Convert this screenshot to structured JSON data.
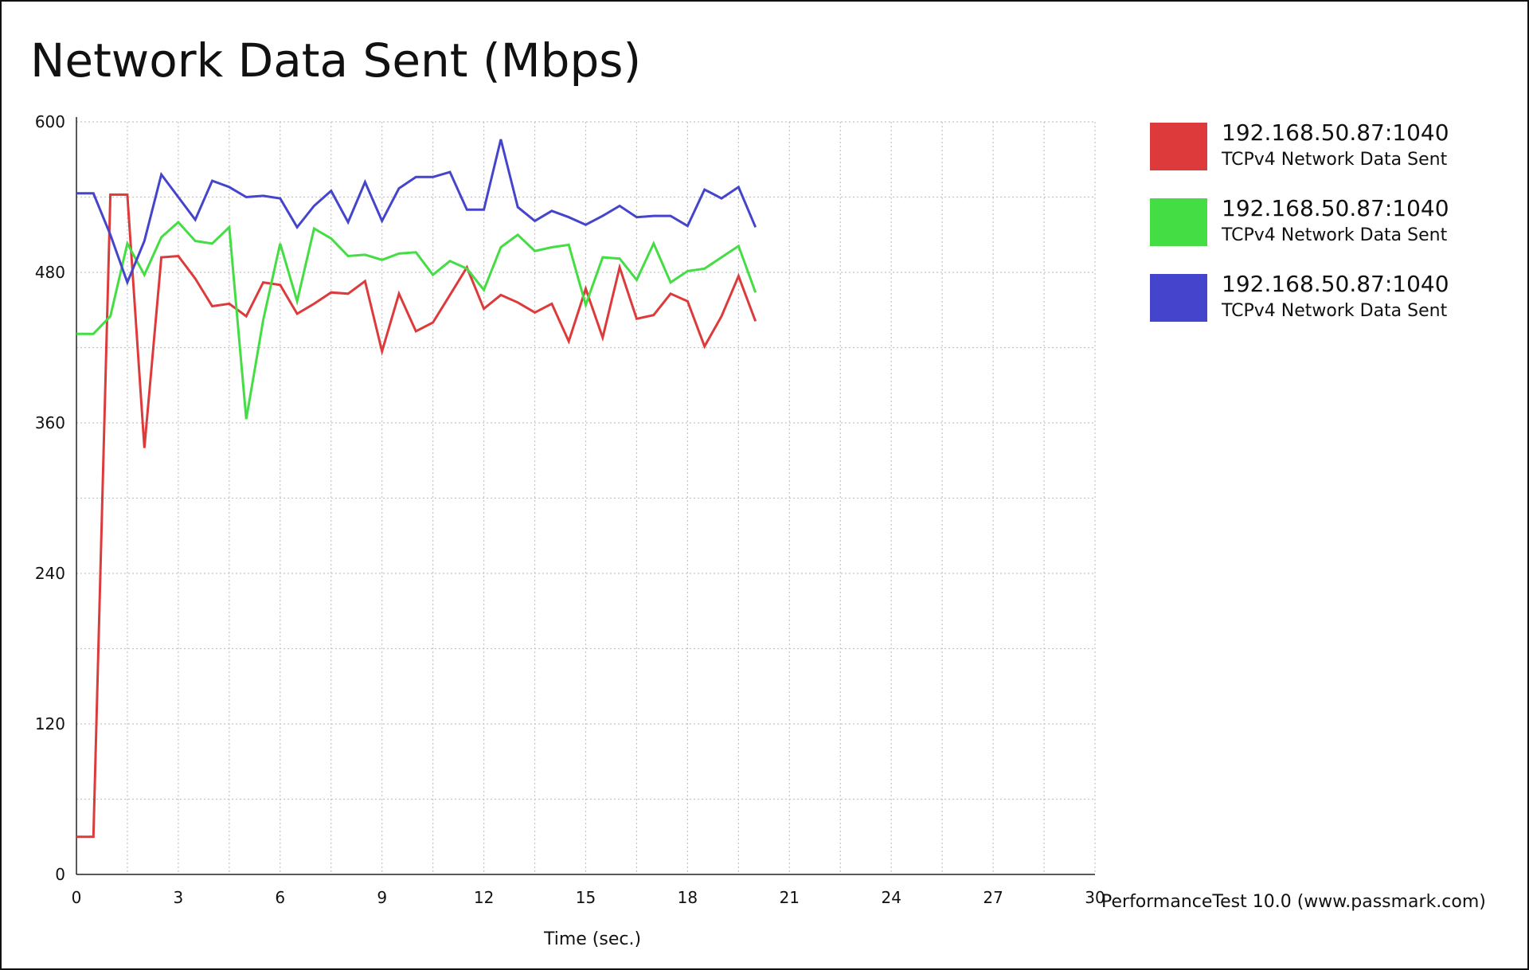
{
  "chart_data": {
    "type": "line",
    "title": "Network Data Sent (Mbps)",
    "xlabel": "Time (sec.)",
    "ylabel": "",
    "xlim": [
      0,
      30
    ],
    "ylim": [
      0,
      600
    ],
    "xticks": [
      0,
      3,
      6,
      9,
      12,
      15,
      18,
      21,
      24,
      27,
      30
    ],
    "yticks": [
      0,
      120,
      240,
      360,
      480,
      600
    ],
    "grid": true,
    "legend_position": "right",
    "credit": "PerformanceTest 10.0 (www.passmark.com)",
    "x": [
      0,
      0.5,
      1,
      1.5,
      2,
      2.5,
      3,
      3.5,
      4,
      4.5,
      5,
      5.5,
      6,
      6.5,
      7,
      7.5,
      8,
      8.5,
      9,
      9.5,
      10,
      10.5,
      11,
      11.5,
      12,
      12.5,
      13,
      13.5,
      14,
      14.5,
      15,
      15.5,
      16,
      16.5,
      17,
      17.5,
      18,
      18.5,
      19,
      19.5,
      20
    ],
    "series": [
      {
        "name": "192.168.50.87:1040",
        "subtitle": "TCPv4 Network Data Sent",
        "color": "#dd3b3b",
        "values": [
          30,
          30,
          542,
          542,
          340,
          492,
          493,
          475,
          453,
          455,
          445,
          472,
          470,
          447,
          455,
          464,
          463,
          473,
          417,
          463,
          433,
          440,
          462,
          484,
          451,
          462,
          456,
          448,
          455,
          425,
          467,
          428,
          484,
          443,
          446,
          463,
          457,
          421,
          445,
          477,
          441
        ]
      },
      {
        "name": "192.168.50.87:1040",
        "subtitle": "TCPv4 Network Data Sent",
        "color": "#44dd44",
        "values": [
          431,
          431,
          445,
          503,
          478,
          508,
          520,
          505,
          503,
          516,
          363,
          442,
          503,
          457,
          515,
          507,
          493,
          494,
          490,
          495,
          496,
          478,
          489,
          483,
          466,
          500,
          510,
          497,
          500,
          502,
          454,
          492,
          491,
          474,
          503,
          472,
          481,
          483,
          492,
          501,
          464
        ]
      },
      {
        "name": "192.168.50.87:1040",
        "subtitle": "TCPv4 Network Data Sent",
        "color": "#4444cc",
        "values": [
          543,
          543,
          510,
          472,
          505,
          558,
          540,
          522,
          553,
          548,
          540,
          541,
          539,
          516,
          533,
          545,
          520,
          552,
          521,
          547,
          556,
          556,
          560,
          530,
          530,
          586,
          532,
          521,
          529,
          524,
          518,
          525,
          533,
          524,
          525,
          525,
          517,
          546,
          539,
          548,
          516
        ]
      }
    ]
  }
}
